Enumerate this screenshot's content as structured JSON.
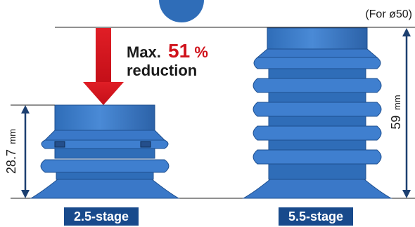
{
  "note": "(For ø50)",
  "reduction": {
    "prefix": "Max.",
    "value": "51",
    "unit": "%",
    "line2": "reduction"
  },
  "left_cup": {
    "stage_label": "2.5-stage",
    "height_value": "28.7",
    "height_unit": "mm"
  },
  "right_cup": {
    "stage_label": "5.5-stage",
    "height_value": "59",
    "height_unit": "mm"
  },
  "colors": {
    "cup_fill": "#3a78c8",
    "cup_dark": "#1e4f8f",
    "cup_light": "#7fb0ea",
    "dimension_line": "#1c3f70",
    "arrow_red": "#d0131c",
    "label_bg": "#184a8c",
    "label_text": "#ffffff",
    "text_dark": "#1a1a1a"
  }
}
